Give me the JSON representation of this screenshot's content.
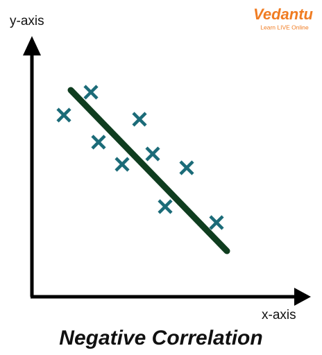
{
  "title": "Negative Correlation",
  "axes": {
    "y_label": "y-axis",
    "x_label": "x-axis"
  },
  "logo": {
    "name": "Vedantu",
    "tagline": "Learn LIVE Online"
  }
}
